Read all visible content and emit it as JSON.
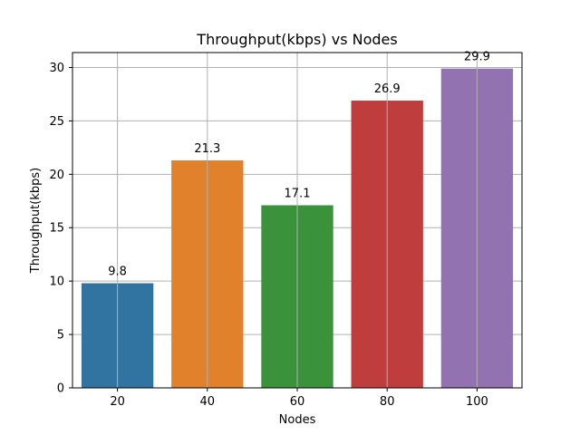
{
  "chart_data": {
    "type": "bar",
    "title": "Throughput(kbps) vs Nodes",
    "xlabel": "Nodes",
    "ylabel": "Throughput(kbps)",
    "categories": [
      "20",
      "40",
      "60",
      "80",
      "100"
    ],
    "values": [
      9.8,
      21.3,
      17.1,
      26.9,
      29.9
    ],
    "value_labels": [
      "9.8",
      "21.3",
      "17.1",
      "26.9",
      "29.9"
    ],
    "colors": [
      "#3274a1",
      "#e1812c",
      "#3a923a",
      "#c03d3e",
      "#9372b2"
    ],
    "ylim": [
      0,
      31.4
    ],
    "yticks": [
      0,
      5,
      10,
      15,
      20,
      25,
      30
    ],
    "ytick_labels": [
      "0",
      "5",
      "10",
      "15",
      "20",
      "25",
      "30"
    ],
    "grid": true,
    "legend": "none"
  }
}
